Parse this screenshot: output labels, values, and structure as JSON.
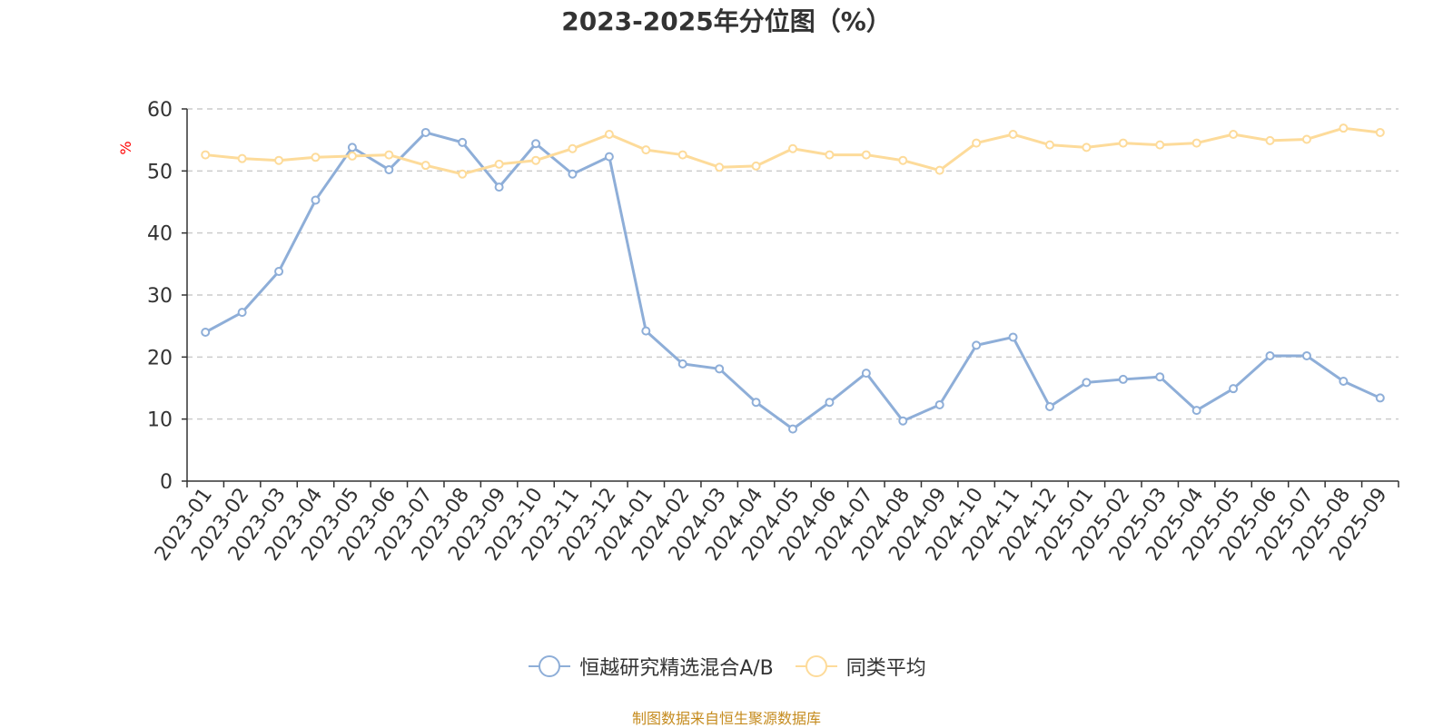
{
  "chart_data": {
    "type": "line",
    "title": "2023-2025年分位图（%）",
    "ylabel": "%",
    "xlabel": "",
    "ylim": [
      0,
      60
    ],
    "yticks": [
      0,
      10,
      20,
      30,
      40,
      50,
      60
    ],
    "grid": "horizontal dashed",
    "legend_position": "bottom",
    "categories": [
      "2023-01",
      "2023-02",
      "2023-03",
      "2023-04",
      "2023-05",
      "2023-06",
      "2023-07",
      "2023-08",
      "2023-09",
      "2023-10",
      "2023-11",
      "2023-12",
      "2024-01",
      "2024-02",
      "2024-03",
      "2024-04",
      "2024-05",
      "2024-06",
      "2024-07",
      "2024-08",
      "2024-09",
      "2024-10",
      "2024-11",
      "2024-12",
      "2025-01",
      "2025-02",
      "2025-03",
      "2025-04",
      "2025-05",
      "2025-06",
      "2025-07",
      "2025-08",
      "2025-09"
    ],
    "series": [
      {
        "name": "恒越研究精选混合A/B",
        "color": "#8eaed8",
        "values": [
          24.0,
          27.2,
          33.8,
          45.3,
          53.8,
          50.2,
          56.2,
          54.6,
          47.4,
          54.4,
          49.5,
          52.3,
          24.2,
          18.9,
          18.1,
          12.7,
          8.4,
          12.7,
          17.4,
          9.7,
          12.3,
          21.9,
          23.2,
          12.0,
          15.9,
          16.4,
          16.8,
          11.4,
          14.9,
          20.2,
          20.2,
          16.1,
          13.4
        ]
      },
      {
        "name": "同类平均",
        "color": "#fddb9a",
        "values": [
          52.6,
          52.0,
          51.7,
          52.2,
          52.4,
          52.6,
          50.9,
          49.5,
          51.1,
          51.7,
          53.6,
          55.9,
          53.4,
          52.6,
          50.6,
          50.8,
          53.6,
          52.6,
          52.6,
          51.7,
          50.1,
          54.5,
          55.9,
          54.2,
          53.8,
          54.5,
          54.2,
          54.5,
          55.9,
          54.9,
          55.1,
          56.9,
          56.2
        ]
      }
    ]
  },
  "source_note": "制图数据来自恒生聚源数据库"
}
